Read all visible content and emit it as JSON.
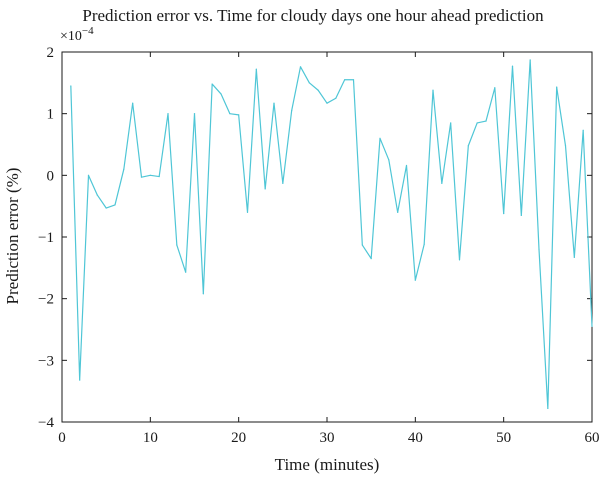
{
  "chart_data": {
    "type": "line",
    "title": "Prediction error vs. Time for cloudy days one hour ahead prediction",
    "xlabel": "Time (minutes)",
    "ylabel": "Prediction error (%)",
    "y_multiplier_text": "×10",
    "y_multiplier_exp": "−4",
    "xlim": [
      0,
      60
    ],
    "ylim": [
      -4,
      2
    ],
    "xticks": [
      0,
      10,
      20,
      30,
      40,
      50,
      60
    ],
    "yticks": [
      -4,
      -3,
      -2,
      -1,
      0,
      1,
      2
    ],
    "ytick_labels": [
      "−4",
      "−3",
      "−2",
      "−1",
      "0",
      "1",
      "2"
    ],
    "grid": false,
    "series": [
      {
        "color": "#4fc6d6",
        "x": [
          1,
          2,
          3,
          4,
          5,
          6,
          7,
          8,
          9,
          10,
          11,
          12,
          13,
          14,
          15,
          16,
          17,
          18,
          19,
          20,
          21,
          22,
          23,
          24,
          25,
          26,
          27,
          28,
          29,
          30,
          31,
          32,
          33,
          34,
          35,
          36,
          37,
          38,
          39,
          40,
          41,
          42,
          43,
          44,
          45,
          46,
          47,
          48,
          49,
          50,
          51,
          52,
          53,
          54,
          55,
          56,
          57,
          58,
          59,
          60
        ],
        "values": [
          1.45,
          -3.32,
          0.0,
          -0.32,
          -0.53,
          -0.48,
          0.1,
          1.17,
          -0.03,
          0.0,
          -0.02,
          1.0,
          -1.13,
          -1.57,
          1.0,
          -1.92,
          1.48,
          1.32,
          1.0,
          0.98,
          -0.6,
          1.72,
          -0.22,
          1.17,
          -0.13,
          1.05,
          1.76,
          1.5,
          1.38,
          1.17,
          1.25,
          1.55,
          1.55,
          -1.13,
          -1.35,
          0.6,
          0.25,
          -0.6,
          0.16,
          -1.7,
          -1.12,
          1.38,
          -0.13,
          0.85,
          -1.37,
          0.48,
          0.85,
          0.88,
          1.42,
          -0.62,
          1.77,
          -0.65,
          1.87,
          -1.2,
          -3.78,
          1.43,
          0.48,
          -1.33,
          0.73,
          -2.45
        ]
      }
    ]
  }
}
